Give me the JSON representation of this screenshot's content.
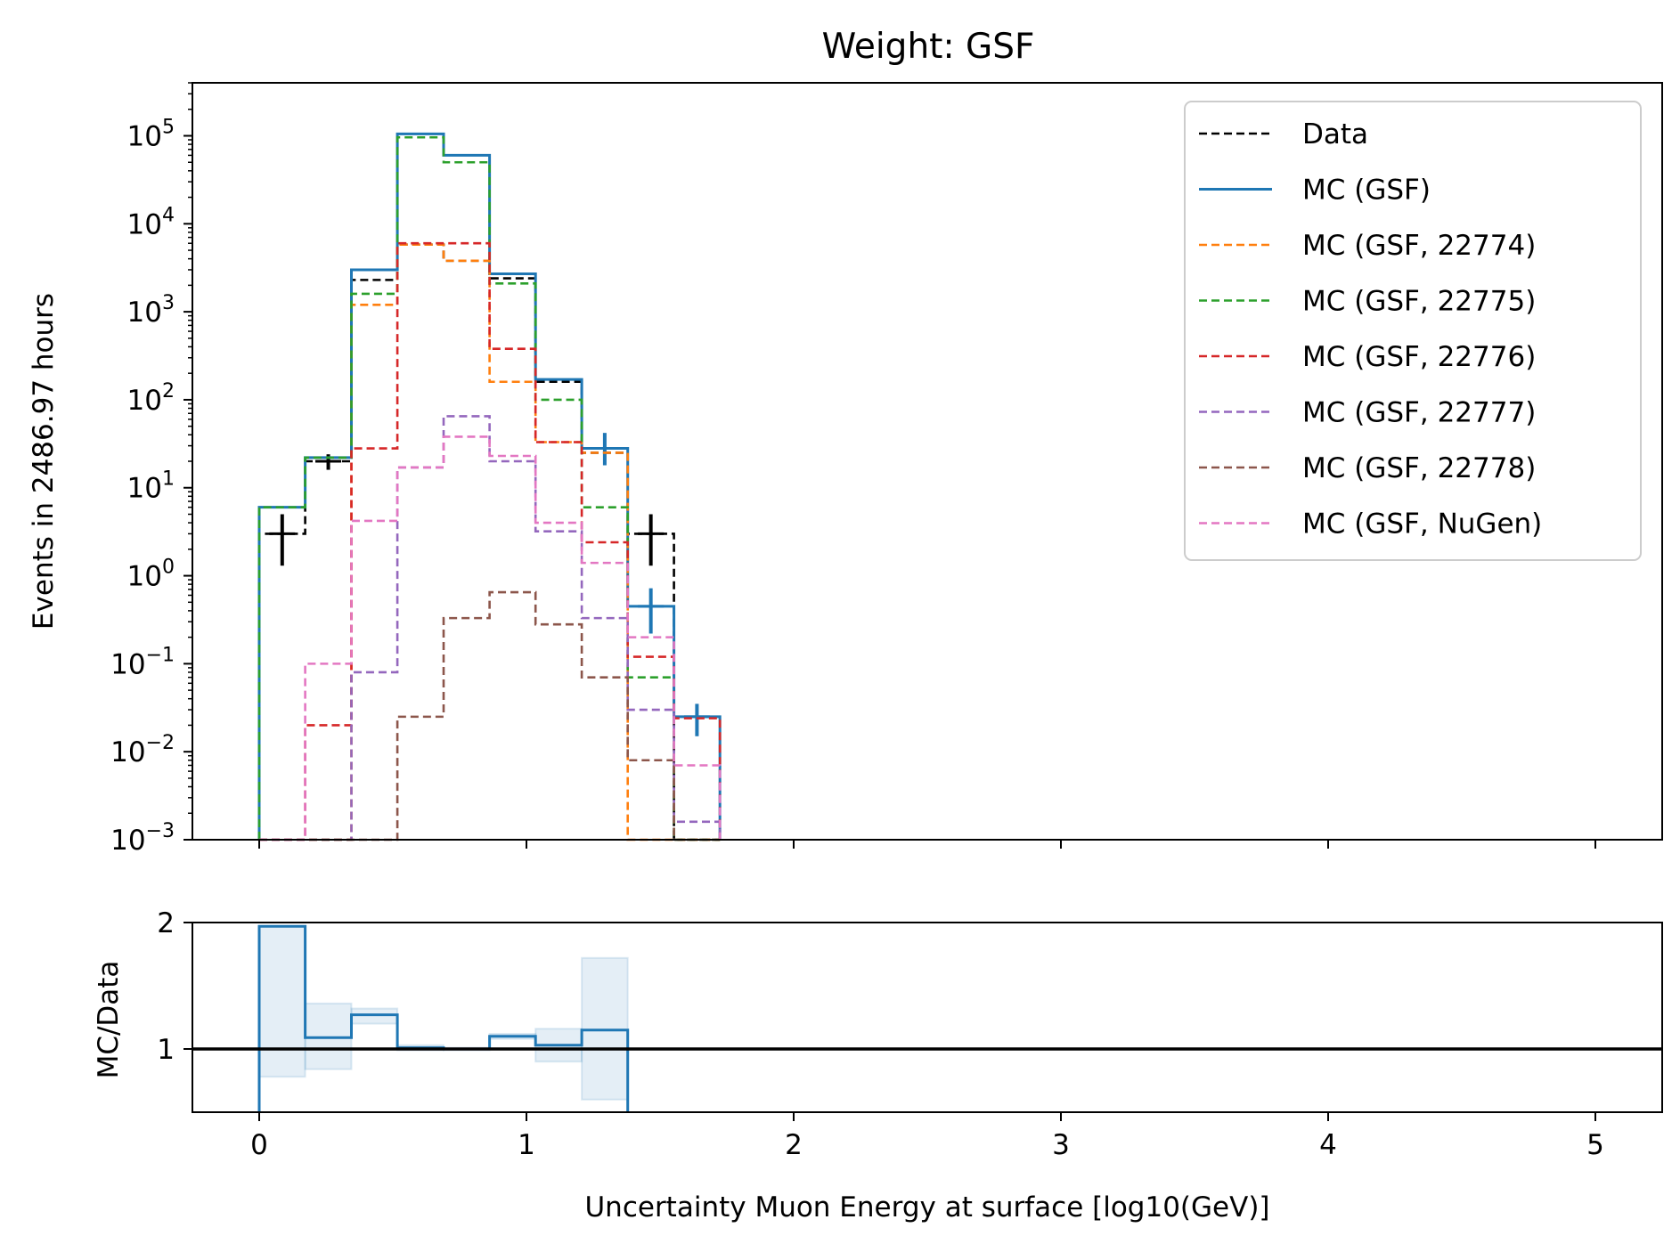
{
  "chart_data": [
    {
      "type": "histogram-step",
      "panel": "main",
      "title": "Weight: GSF",
      "ylabel": "Events in 2486.97 hours",
      "xlabel": "",
      "yscale": "log",
      "ylim": [
        0.001,
        400000
      ],
      "xlim": [
        -0.25,
        5.25
      ],
      "y_ticks": [
        {
          "base": "10",
          "exp": "−3"
        },
        {
          "base": "10",
          "exp": "−2"
        },
        {
          "base": "10",
          "exp": "−1"
        },
        {
          "base": "10",
          "exp": "0"
        },
        {
          "base": "10",
          "exp": "1"
        },
        {
          "base": "10",
          "exp": "2"
        },
        {
          "base": "10",
          "exp": "3"
        },
        {
          "base": "10",
          "exp": "4"
        },
        {
          "base": "10",
          "exp": "5"
        }
      ],
      "bin_edges": [
        0.0,
        0.172,
        0.345,
        0.517,
        0.69,
        0.862,
        1.034,
        1.207,
        1.379,
        1.552,
        1.724
      ],
      "legend_position": "upper right",
      "series": [
        {
          "name": "Data",
          "color": "#000000",
          "style": "dashed",
          "values": [
            3,
            20,
            2300,
            5800,
            3800,
            2400,
            160,
            25,
            3,
            null
          ],
          "errorbars": [
            [
              1.3,
              5.0
            ],
            [
              16,
              24
            ],
            null,
            null,
            null,
            null,
            null,
            null,
            [
              1.3,
              5.0
            ],
            null
          ]
        },
        {
          "name": "MC (GSF)",
          "color": "#1f77b4",
          "style": "solid",
          "values": [
            6,
            22,
            3000,
            105000,
            60000,
            2700,
            170,
            28,
            0.45,
            0.025
          ],
          "errorbars": [
            null,
            null,
            null,
            null,
            null,
            null,
            null,
            [
              18,
              42
            ],
            [
              0.22,
              0.72
            ],
            [
              0.015,
              0.035
            ]
          ]
        },
        {
          "name": "MC (GSF, 22774)",
          "color": "#ff7f0e",
          "style": "dashed",
          "values": [
            null,
            null,
            1200,
            5800,
            3800,
            160,
            33,
            25,
            null,
            null
          ]
        },
        {
          "name": "MC (GSF, 22775)",
          "color": "#2ca02c",
          "style": "dashed",
          "values": [
            6,
            22,
            1600,
            96000,
            50000,
            2100,
            100,
            6,
            0.07,
            null
          ]
        },
        {
          "name": "MC (GSF, 22776)",
          "color": "#d62728",
          "style": "dashed",
          "values": [
            null,
            0.02,
            28,
            6000,
            6000,
            380,
            33,
            2.4,
            0.12,
            0.024
          ]
        },
        {
          "name": "MC (GSF, 22777)",
          "color": "#9467bd",
          "style": "dashed",
          "values": [
            null,
            null,
            0.08,
            17,
            65,
            20,
            3.2,
            0.33,
            0.03,
            0.0016
          ]
        },
        {
          "name": "MC (GSF, 22778)",
          "color": "#8c564b",
          "style": "dashed",
          "values": [
            null,
            null,
            null,
            0.025,
            0.33,
            0.65,
            0.28,
            0.07,
            0.008,
            null
          ]
        },
        {
          "name": "MC (GSF, NuGen)",
          "color": "#e377c2",
          "style": "dashed",
          "values": [
            null,
            0.1,
            4.2,
            17,
            38,
            23,
            4,
            1.4,
            0.2,
            0.007
          ]
        }
      ]
    },
    {
      "type": "histogram-step",
      "panel": "ratio",
      "xlabel": "Uncertainty Muon Energy at surface [log10(GeV)]",
      "ylabel": "MC/Data",
      "ylim": [
        0.5,
        2.0
      ],
      "y_ticks": [
        "1",
        "2"
      ],
      "x_ticks": [
        "0",
        "1",
        "2",
        "3",
        "4",
        "5"
      ],
      "x_tick_values": [
        0,
        1,
        2,
        3,
        4,
        5
      ],
      "reference_line": 1,
      "bin_edges": [
        0.0,
        0.172,
        0.345,
        0.517,
        0.69,
        0.862,
        1.034,
        1.207,
        1.379
      ],
      "values": [
        1.97,
        1.09,
        1.27,
        1.01,
        1.0,
        1.1,
        1.03,
        1.15
      ],
      "band_low": [
        0.78,
        0.84,
        1.2,
        0.99,
        0.99,
        1.08,
        0.9,
        0.6
      ],
      "band_high": [
        1.97,
        1.36,
        1.32,
        1.03,
        1.01,
        1.12,
        1.16,
        1.72
      ],
      "color": "#1f77b4"
    }
  ]
}
